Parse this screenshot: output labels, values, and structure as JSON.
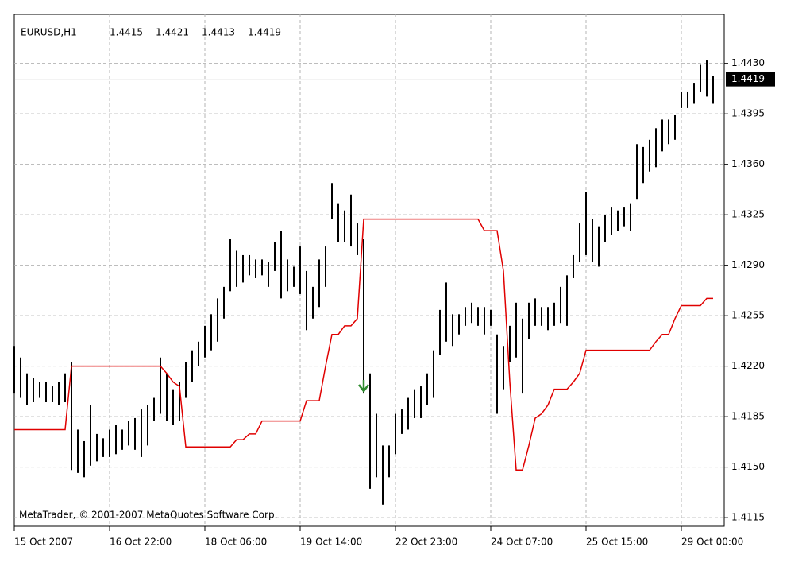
{
  "chart_data": {
    "type": "ohlc",
    "symbol": "EURUSD,H1",
    "header_values": [
      1.4415,
      1.4421,
      1.4413,
      1.4419
    ],
    "copyright": "MetaTrader, © 2001-2007 MetaQuotes Software Corp.",
    "bar_color": "#000000",
    "high": [
      1.4234,
      1.4226,
      1.4215,
      1.4212,
      1.4209,
      1.4209,
      1.4206,
      1.4209,
      1.4215,
      1.4223,
      1.4176,
      1.4168,
      1.4193,
      1.4173,
      1.417,
      1.4176,
      1.4179,
      1.4176,
      1.4182,
      1.4184,
      1.419,
      1.4193,
      1.4198,
      1.4226,
      1.4215,
      1.4204,
      1.4209,
      1.4223,
      1.4231,
      1.4237,
      1.4248,
      1.4256,
      1.4267,
      1.4275,
      1.4308,
      1.43,
      1.4297,
      1.4297,
      1.4294,
      1.4294,
      1.4292,
      1.4306,
      1.4314,
      1.4294,
      1.4289,
      1.4303,
      1.4286,
      1.4275,
      1.4294,
      1.4303,
      1.4347,
      1.4333,
      1.4328,
      1.4339,
      1.4319,
      1.4308,
      1.4215,
      1.4187,
      1.4165,
      1.4165,
      1.4187,
      1.419,
      1.4198,
      1.4204,
      1.4206,
      1.4215,
      1.4231,
      1.4259,
      1.4278,
      1.4256,
      1.4256,
      1.4261,
      1.4264,
      1.4261,
      1.4261,
      1.4259,
      1.4242,
      1.4234,
      1.4248,
      1.4264,
      1.4253,
      1.4264,
      1.4267,
      1.4261,
      1.4261,
      1.4264,
      1.4275,
      1.4283,
      1.4297,
      1.4319,
      1.4341,
      1.4322,
      1.4317,
      1.4325,
      1.433,
      1.4328,
      1.433,
      1.4333,
      1.4374,
      1.4372,
      1.4377,
      1.4385,
      1.4391,
      1.4391,
      1.4394,
      1.441,
      1.441,
      1.4416,
      1.4429,
      1.4432,
      1.4421
    ],
    "low": [
      1.4201,
      1.4198,
      1.4193,
      1.4195,
      1.4198,
      1.4195,
      1.4195,
      1.4193,
      1.4195,
      1.4148,
      1.4146,
      1.4143,
      1.4151,
      1.4154,
      1.4157,
      1.4157,
      1.4159,
      1.4162,
      1.4165,
      1.4162,
      1.4157,
      1.4165,
      1.4182,
      1.4187,
      1.4182,
      1.4179,
      1.4182,
      1.4198,
      1.4209,
      1.422,
      1.4226,
      1.4231,
      1.4237,
      1.4253,
      1.4272,
      1.4275,
      1.4278,
      1.4283,
      1.4281,
      1.4283,
      1.4275,
      1.4286,
      1.4267,
      1.4272,
      1.4275,
      1.427,
      1.4245,
      1.4253,
      1.4261,
      1.4275,
      1.4322,
      1.4306,
      1.4306,
      1.4303,
      1.4297,
      1.4201,
      1.4135,
      1.4143,
      1.4124,
      1.4143,
      1.4159,
      1.4173,
      1.4176,
      1.4184,
      1.4184,
      1.4193,
      1.4198,
      1.4228,
      1.4237,
      1.4234,
      1.4242,
      1.4248,
      1.425,
      1.4248,
      1.4242,
      1.4248,
      1.4187,
      1.4204,
      1.4223,
      1.4226,
      1.4201,
      1.4239,
      1.4248,
      1.4248,
      1.4245,
      1.4248,
      1.425,
      1.4248,
      1.4281,
      1.4292,
      1.4297,
      1.4292,
      1.4289,
      1.4306,
      1.4311,
      1.4314,
      1.4317,
      1.4314,
      1.4336,
      1.4347,
      1.4355,
      1.4358,
      1.4369,
      1.4374,
      1.4377,
      1.4399,
      1.4399,
      1.4402,
      1.441,
      1.4407,
      1.4402
    ],
    "indicator": {
      "color": "#e00000",
      "values": [
        1.4176,
        1.4176,
        1.4176,
        1.4176,
        1.4176,
        1.4176,
        1.4176,
        1.4176,
        1.4176,
        1.422,
        1.422,
        1.422,
        1.422,
        1.422,
        1.422,
        1.422,
        1.422,
        1.422,
        1.422,
        1.422,
        1.422,
        1.422,
        1.422,
        1.422,
        1.4215,
        1.4209,
        1.4206,
        1.4164,
        1.4164,
        1.4164,
        1.4164,
        1.4164,
        1.4164,
        1.4164,
        1.4164,
        1.4169,
        1.4169,
        1.4173,
        1.4173,
        1.4182,
        1.4182,
        1.4182,
        1.4182,
        1.4182,
        1.4182,
        1.4182,
        1.4196,
        1.4196,
        1.4196,
        1.422,
        1.4242,
        1.4242,
        1.4248,
        1.4248,
        1.4253,
        1.4322,
        1.4322,
        1.4322,
        1.4322,
        1.4322,
        1.4322,
        1.4322,
        1.4322,
        1.4322,
        1.4322,
        1.4322,
        1.4322,
        1.4322,
        1.4322,
        1.4322,
        1.4322,
        1.4322,
        1.4322,
        1.4322,
        1.4314,
        1.4314,
        1.4314,
        1.4286,
        1.4209,
        1.4148,
        1.4148,
        1.4165,
        1.4184,
        1.4187,
        1.4193,
        1.4204,
        1.4204,
        1.4204,
        1.4209,
        1.4215,
        1.4231,
        1.4231,
        1.4231,
        1.4231,
        1.4231,
        1.4231,
        1.4231,
        1.4231,
        1.4231,
        1.4231,
        1.4231,
        1.4237,
        1.4242,
        1.4242,
        1.4253,
        1.4262,
        1.4262,
        1.4262,
        1.4262,
        1.4267,
        1.4267
      ]
    },
    "arrows": {
      "color": "#2e8b2e",
      "x": [
        55
      ],
      "values": [
        1.4206
      ]
    },
    "xlim": [
      0,
      111.75
    ],
    "xticks": [
      {
        "value": 0,
        "label": "15 Oct 2007"
      },
      {
        "value": 15,
        "label": "16 Oct 22:00"
      },
      {
        "value": 30,
        "label": "18 Oct 06:00"
      },
      {
        "value": 45,
        "label": "19 Oct 14:00"
      },
      {
        "value": 60,
        "label": "22 Oct 23:00"
      },
      {
        "value": 75,
        "label": "24 Oct 07:00"
      },
      {
        "value": 90,
        "label": "25 Oct 15:00"
      },
      {
        "value": 105,
        "label": "29 Oct 00:00"
      }
    ],
    "ylim": [
      1.4109,
      1.4464
    ],
    "yticks": [
      1.4115,
      {
        "value": 1.415,
        "label": "1.4150"
      },
      1.4185,
      {
        "value": 1.422,
        "label": "1.4220"
      },
      1.4255,
      {
        "value": 1.429,
        "label": "1.4290"
      },
      1.4325,
      {
        "value": 1.436,
        "label": "1.4360"
      },
      1.4395,
      {
        "value": 1.443,
        "label": "1.4430"
      }
    ],
    "grid": true
  }
}
